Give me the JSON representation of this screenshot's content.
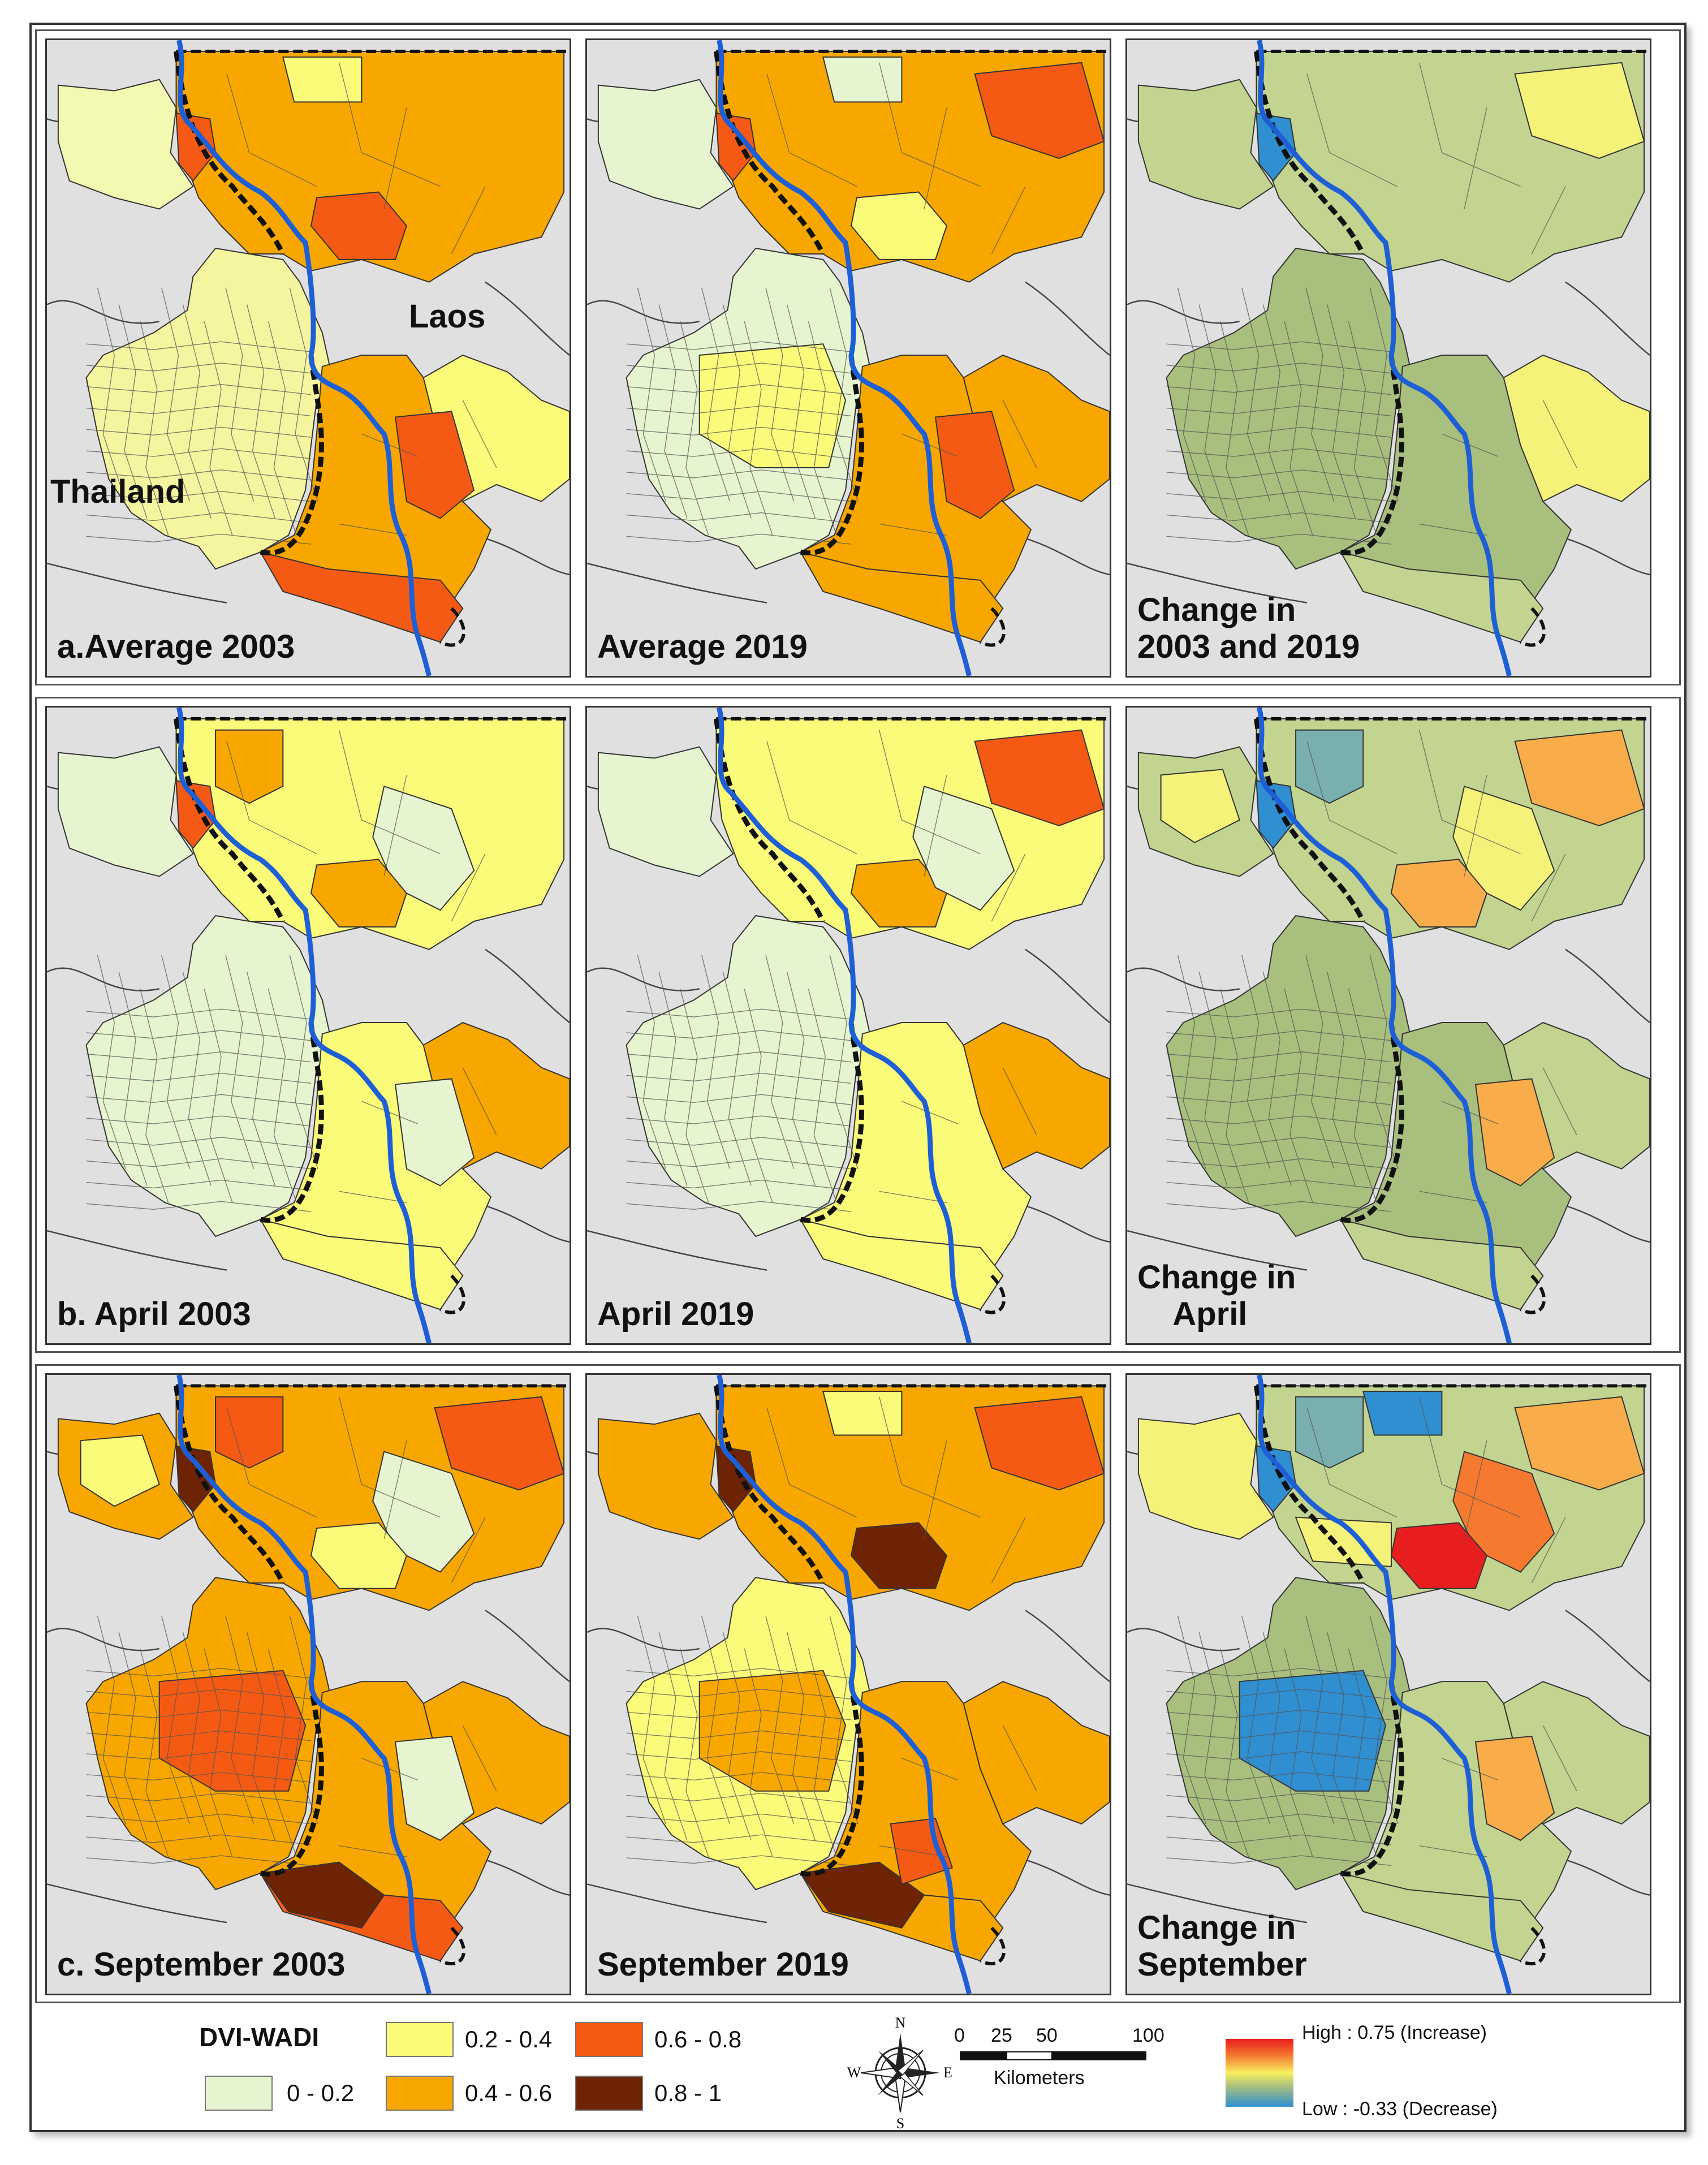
{
  "panels": [
    {
      "id": "a1",
      "label": "a.Average 2003",
      "scheme": "avg03"
    },
    {
      "id": "a2",
      "label": "Average 2019",
      "scheme": "avg19"
    },
    {
      "id": "a3",
      "label": "Change in\n2003 and 2019",
      "scheme": "chgAvg"
    },
    {
      "id": "b1",
      "label": "b. April 2003",
      "scheme": "apr03"
    },
    {
      "id": "b2",
      "label": "April 2019",
      "scheme": "apr19"
    },
    {
      "id": "b3",
      "label": "Change in\n    April",
      "scheme": "chgApr"
    },
    {
      "id": "c1",
      "label": "c. September 2003",
      "scheme": "sep03"
    },
    {
      "id": "c2",
      "label": "September 2019",
      "scheme": "sep19"
    },
    {
      "id": "c3",
      "label": "Change in\nSeptember",
      "scheme": "chgSep"
    }
  ],
  "country_labels": {
    "laos": "Laos",
    "thailand": "Thailand"
  },
  "legend": {
    "title": "DVI-WADI",
    "classes": [
      {
        "label": "0 - 0.2",
        "color": "#e6f5cf"
      },
      {
        "label": "0.2 - 0.4",
        "color": "#fbfb7a"
      },
      {
        "label": "0.4 - 0.6",
        "color": "#f7a700"
      },
      {
        "label": "0.6 - 0.8",
        "color": "#f55a14"
      },
      {
        "label": "0.8 - 1",
        "color": "#6e2404"
      }
    ],
    "change_high": "High : 0.75 (Increase)",
    "change_low": "Low : -0.33 (Decrease)"
  },
  "compass": {
    "n": "N",
    "s": "S",
    "e": "E",
    "w": "W"
  },
  "scale_bar": {
    "ticks": [
      "0",
      "25",
      "50",
      "100"
    ],
    "unit": "Kilometers"
  },
  "colors": {
    "river": "#1f5fd6",
    "background": "#e0e0e0",
    "change_green": "#c2d48f",
    "change_olive": "#a9bf7e",
    "change_blue": "#2f8fd1",
    "change_teal": "#7aafb0",
    "change_red": "#e81e1e",
    "change_orange": "#f57a30",
    "change_lightorange": "#f8ad4a"
  }
}
